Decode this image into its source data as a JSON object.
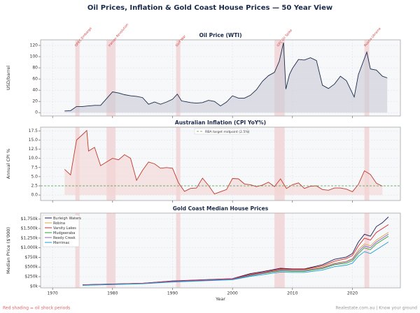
{
  "title": "Oil Prices, Inflation & Gold Coast House Prices — 50 Year View",
  "shock_periods": [
    {
      "label": "OPEC Embargo",
      "start": 1973.8,
      "end": 1974.5
    },
    {
      "label": "Iranian Revolution",
      "start": 1979.0,
      "end": 1980.5
    },
    {
      "label": "Gulf War",
      "start": 1990.6,
      "end": 1991.3
    },
    {
      "label": "GFC Oil Spike",
      "start": 2007.0,
      "end": 2008.7
    },
    {
      "label": "Russia-Ukraine",
      "start": 2022.0,
      "end": 2022.8
    }
  ],
  "footer": {
    "note": "Red shading = oil shock periods",
    "source": "Realestate.com.au  |  Know your ground"
  },
  "chart_data": [
    {
      "type": "line",
      "title": "Oil Price (WTI)",
      "y_label": "USD/barrel",
      "color": "#1b2a4a",
      "fill": "#c9ccd6",
      "x": [
        1972,
        1973,
        1974,
        1975,
        1976,
        1977,
        1978,
        1979,
        1980,
        1981,
        1982,
        1983,
        1984,
        1985,
        1986,
        1987,
        1988,
        1989,
        1990,
        1990.8,
        1991.5,
        1992,
        1993,
        1994,
        1995,
        1996,
        1997,
        1998,
        1999,
        2000,
        2001,
        2002,
        2003,
        2004,
        2005,
        2006,
        2007,
        2007.8,
        2008.5,
        2008.9,
        2009.5,
        2010,
        2011,
        2012,
        2013,
        2014,
        2015,
        2016,
        2017,
        2018,
        2019,
        2020.3,
        2021,
        2022.4,
        2023,
        2024,
        2025,
        2025.8
      ],
      "values": [
        3,
        3.5,
        11,
        11,
        12,
        13,
        13,
        25,
        37,
        35,
        32,
        30,
        29,
        27,
        15,
        19,
        15,
        19,
        24,
        33,
        21,
        20,
        18,
        17,
        18,
        22,
        20,
        12,
        19,
        30,
        26,
        26,
        31,
        41,
        56,
        66,
        72,
        92,
        125,
        42,
        68,
        79,
        95,
        94,
        98,
        93,
        49,
        43,
        51,
        65,
        57,
        28,
        68,
        108,
        78,
        76,
        65,
        62
      ],
      "xlim": [
        1968,
        2028
      ],
      "ylim": [
        -6,
        130
      ],
      "yticks": [
        0,
        20,
        40,
        60,
        80,
        100,
        120
      ],
      "grid": true
    },
    {
      "type": "line",
      "title": "Australian Inflation (CPI YoY%)",
      "y_label": "Annual CPI %",
      "color": "#c0392b",
      "fill": "#f4d6d3",
      "x": [
        1972,
        1973,
        1974,
        1975,
        1975.7,
        1976,
        1977,
        1978,
        1979,
        1980,
        1981,
        1982,
        1983,
        1984,
        1985,
        1986,
        1987,
        1988,
        1989,
        1990,
        1991,
        1992,
        1993,
        1994,
        1995,
        1996,
        1997,
        1998,
        1999,
        2000,
        2001,
        2002,
        2003,
        2004,
        2005,
        2006,
        2007,
        2008,
        2009,
        2010,
        2011,
        2012,
        2013,
        2014,
        2015,
        2016,
        2017,
        2018,
        2019,
        2020,
        2021,
        2022,
        2023,
        2024,
        2025
      ],
      "values": [
        7,
        5.5,
        15,
        16.5,
        17.6,
        12,
        13,
        8,
        9,
        10,
        9.6,
        11,
        10,
        4,
        6.7,
        9,
        8.5,
        7.3,
        7.5,
        7.3,
        3.3,
        1,
        1.8,
        1.9,
        4.6,
        2.6,
        0.3,
        0.9,
        1.5,
        4.5,
        4.4,
        3,
        2.8,
        2.3,
        2.7,
        3.5,
        2.3,
        4.4,
        1.8,
        2.8,
        3.3,
        1.8,
        2.4,
        2.5,
        1.5,
        1.3,
        1.9,
        1.9,
        1.6,
        0.9,
        2.9,
        6.6,
        5.6,
        3.2,
        2.4
      ],
      "reference": {
        "label": "RBA target midpoint (2.5%)",
        "value": 2.5,
        "color": "#4a9a4a"
      },
      "xlim": [
        1968,
        2028
      ],
      "ylim": [
        -1.5,
        18.5
      ],
      "yticks": [
        {
          "value": 0,
          "label": "0.0"
        },
        2.5,
        {
          "value": 5,
          "label": "5.0"
        },
        7.5,
        {
          "value": 10,
          "label": "10.0"
        },
        12.5,
        {
          "value": 15,
          "label": "15.0"
        },
        17.5
      ],
      "grid": true
    },
    {
      "type": "multiline",
      "title": "Gold Coast Median House Prices",
      "y_label": "Median Price ($'000)",
      "x_label": "Year",
      "x": [
        1975,
        1980,
        1985,
        1990,
        1995,
        2000,
        2003,
        2005,
        2008,
        2010,
        2012,
        2015,
        2017,
        2019,
        2020,
        2021,
        2022,
        2023,
        2024,
        2025,
        2026
      ],
      "series": [
        {
          "name": "Burleigh Waters",
          "color": "#1a1a4e",
          "values": [
            40,
            60,
            80,
            140,
            170,
            200,
            330,
            380,
            470,
            450,
            450,
            560,
            700,
            760,
            850,
            1150,
            1350,
            1300,
            1550,
            1650,
            1800
          ]
        },
        {
          "name": "Robina",
          "color": "#d9a441",
          "values": [
            35,
            55,
            75,
            130,
            160,
            190,
            300,
            350,
            430,
            420,
            420,
            500,
            600,
            650,
            720,
            950,
            1100,
            1050,
            1200,
            1300,
            1400
          ]
        },
        {
          "name": "Varsity Lakes",
          "color": "#d62728",
          "values": [
            38,
            58,
            78,
            135,
            165,
            195,
            310,
            360,
            450,
            440,
            440,
            530,
            650,
            720,
            800,
            1050,
            1250,
            1200,
            1400,
            1500,
            1600
          ]
        },
        {
          "name": "Mudgeeraba",
          "color": "#2ca02c",
          "values": [
            30,
            50,
            70,
            120,
            150,
            180,
            280,
            330,
            400,
            390,
            390,
            460,
            560,
            600,
            660,
            850,
            1000,
            950,
            1100,
            1200,
            1300
          ]
        },
        {
          "name": "Reedy Creek",
          "color": "#8e5fc4",
          "values": [
            33,
            53,
            72,
            125,
            155,
            185,
            290,
            340,
            420,
            410,
            410,
            480,
            580,
            630,
            700,
            900,
            1050,
            1000,
            1150,
            1250,
            1350
          ]
        },
        {
          "name": "Merrimac",
          "color": "#1f9ed1",
          "values": [
            25,
            45,
            65,
            110,
            140,
            170,
            260,
            300,
            370,
            360,
            360,
            420,
            510,
            550,
            600,
            780,
            900,
            850,
            950,
            1050,
            1150
          ]
        }
      ],
      "xlim": [
        1968,
        2028
      ],
      "xticks": [
        1970,
        1980,
        1990,
        2000,
        2010,
        2020
      ],
      "ylim": [
        -40,
        1900
      ],
      "yticks": [
        {
          "value": 0,
          "label": "$0k"
        },
        {
          "value": 250,
          "label": "$250k"
        },
        {
          "value": 500,
          "label": "$500k"
        },
        {
          "value": 750,
          "label": "$750k"
        },
        {
          "value": 1000,
          "label": "$1,000k"
        },
        {
          "value": 1250,
          "label": "$1,250k"
        },
        {
          "value": 1500,
          "label": "$1,500k"
        },
        {
          "value": 1750,
          "label": "$1,750k"
        }
      ],
      "grid": true
    }
  ]
}
